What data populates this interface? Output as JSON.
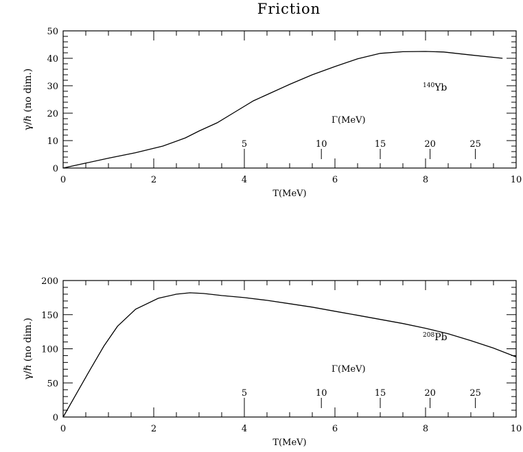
{
  "title": "Friction",
  "chart_data": [
    {
      "type": "line",
      "xlabel": "T(MeV)",
      "ylabel": "γ/ℏ (no dim.)",
      "xlim": [
        0,
        10
      ],
      "ylim": [
        0,
        50
      ],
      "x_ticks": [
        0,
        2,
        4,
        6,
        8,
        10
      ],
      "y_ticks": [
        0,
        10,
        20,
        30,
        40,
        50
      ],
      "annotation": {
        "mass": "140",
        "element": "Yb"
      },
      "gamma_scale": {
        "label": "Γ(MeV)",
        "marks": [
          {
            "label": "5",
            "T": 4.0
          },
          {
            "label": "10",
            "T": 5.7
          },
          {
            "label": "15",
            "T": 7.0
          },
          {
            "label": "20",
            "T": 8.1
          },
          {
            "label": "25",
            "T": 9.1
          }
        ]
      },
      "series": [
        {
          "x": [
            0,
            0.5,
            1.0,
            1.6,
            2.2,
            2.7,
            3.0,
            3.4,
            3.8,
            4.2,
            4.6,
            5.0,
            5.5,
            6.0,
            6.5,
            7.0,
            7.5,
            8.0,
            8.4,
            9.0,
            9.7
          ],
          "y": [
            0,
            1.8,
            3.6,
            5.6,
            8.0,
            11.0,
            13.5,
            16.5,
            20.5,
            24.5,
            27.5,
            30.5,
            34.0,
            37.0,
            39.8,
            41.8,
            42.4,
            42.5,
            42.3,
            41.2,
            40.0
          ]
        }
      ]
    },
    {
      "type": "line",
      "xlabel": "T(MeV)",
      "ylabel": "γ/ℏ (no dim.)",
      "xlim": [
        0,
        10
      ],
      "ylim": [
        0,
        200
      ],
      "x_ticks": [
        0,
        2,
        4,
        6,
        8,
        10
      ],
      "y_ticks": [
        0,
        50,
        100,
        150,
        200
      ],
      "annotation": {
        "mass": "208",
        "element": "Pb"
      },
      "gamma_scale": {
        "label": "Γ(MeV)",
        "marks": [
          {
            "label": "5",
            "T": 4.0
          },
          {
            "label": "10",
            "T": 5.7
          },
          {
            "label": "15",
            "T": 7.0
          },
          {
            "label": "20",
            "T": 8.1
          },
          {
            "label": "25",
            "T": 9.1
          }
        ]
      },
      "series": [
        {
          "x": [
            0,
            0.3,
            0.6,
            0.9,
            1.2,
            1.6,
            2.1,
            2.5,
            2.8,
            3.1,
            3.5,
            4.0,
            4.5,
            5.0,
            5.5,
            6.0,
            6.5,
            7.0,
            7.5,
            8.0,
            8.5,
            9.0,
            9.5,
            10.0
          ],
          "y": [
            0,
            35,
            70,
            104,
            133,
            158,
            174,
            180,
            182,
            181,
            178,
            175,
            171,
            166,
            161,
            155,
            149,
            143,
            137,
            130,
            122,
            112,
            101,
            88
          ]
        }
      ]
    }
  ]
}
